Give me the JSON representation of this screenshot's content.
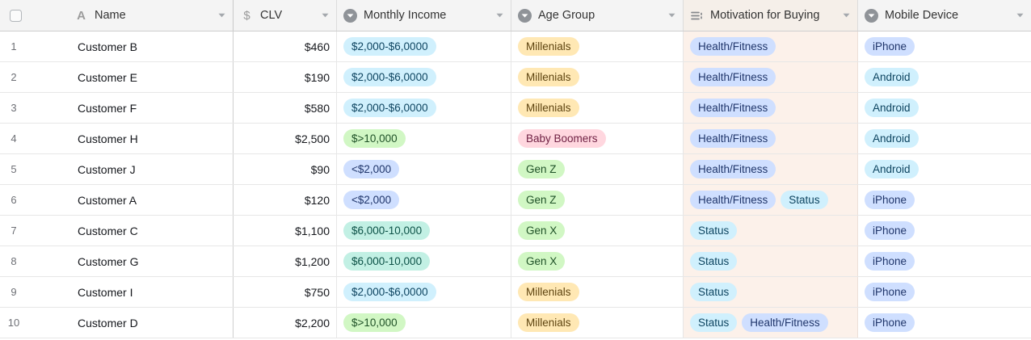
{
  "table": {
    "select_all_checkbox": {
      "checked": false
    },
    "columns": [
      {
        "key": "name",
        "label": "Name",
        "icon": "text-field-icon"
      },
      {
        "key": "clv",
        "label": "CLV",
        "icon": "currency-field-icon"
      },
      {
        "key": "income",
        "label": "Monthly Income",
        "icon": "single-select-field-icon"
      },
      {
        "key": "age",
        "label": "Age Group",
        "icon": "single-select-field-icon"
      },
      {
        "key": "motivation",
        "label": "Motivation for Buying",
        "icon": "multi-select-field-icon"
      },
      {
        "key": "device",
        "label": "Mobile Device",
        "icon": "single-select-field-icon"
      }
    ],
    "option_colors": {
      "cyan": {
        "bg": "#d0f0fd",
        "text": "#0d4460"
      },
      "blue": {
        "bg": "#cfdfff",
        "text": "#20366b"
      },
      "green": {
        "bg": "#d1f7c4",
        "text": "#1f5127"
      },
      "yellow": {
        "bg": "#ffe8b4",
        "text": "#5e4410"
      },
      "pink": {
        "bg": "#ffd7df",
        "text": "#6e1f42"
      },
      "teal": {
        "bg": "#c2f0e4",
        "text": "#0c5247"
      }
    },
    "rows": [
      {
        "num": "1",
        "name": "Customer B",
        "clv": "$460",
        "income": {
          "label": "$2,000-$6,0000",
          "color": "cyan"
        },
        "age": {
          "label": "Millenials",
          "color": "yellow"
        },
        "motivation": [
          {
            "label": "Health/Fitness",
            "color": "blue"
          }
        ],
        "device": {
          "label": "iPhone",
          "color": "blue"
        }
      },
      {
        "num": "2",
        "name": "Customer E",
        "clv": "$190",
        "income": {
          "label": "$2,000-$6,0000",
          "color": "cyan"
        },
        "age": {
          "label": "Millenials",
          "color": "yellow"
        },
        "motivation": [
          {
            "label": "Health/Fitness",
            "color": "blue"
          }
        ],
        "device": {
          "label": "Android",
          "color": "cyan"
        }
      },
      {
        "num": "3",
        "name": "Customer F",
        "clv": "$580",
        "income": {
          "label": "$2,000-$6,0000",
          "color": "cyan"
        },
        "age": {
          "label": "Millenials",
          "color": "yellow"
        },
        "motivation": [
          {
            "label": "Health/Fitness",
            "color": "blue"
          }
        ],
        "device": {
          "label": "Android",
          "color": "cyan"
        }
      },
      {
        "num": "4",
        "name": "Customer H",
        "clv": "$2,500",
        "income": {
          "label": "$>10,000",
          "color": "green"
        },
        "age": {
          "label": "Baby Boomers",
          "color": "pink"
        },
        "motivation": [
          {
            "label": "Health/Fitness",
            "color": "blue"
          }
        ],
        "device": {
          "label": "Android",
          "color": "cyan"
        }
      },
      {
        "num": "5",
        "name": "Customer J",
        "clv": "$90",
        "income": {
          "label": "<$2,000",
          "color": "blue"
        },
        "age": {
          "label": "Gen Z",
          "color": "green"
        },
        "motivation": [
          {
            "label": "Health/Fitness",
            "color": "blue"
          }
        ],
        "device": {
          "label": "Android",
          "color": "cyan"
        }
      },
      {
        "num": "6",
        "name": "Customer A",
        "clv": "$120",
        "income": {
          "label": "<$2,000",
          "color": "blue"
        },
        "age": {
          "label": "Gen Z",
          "color": "green"
        },
        "motivation": [
          {
            "label": "Health/Fitness",
            "color": "blue"
          },
          {
            "label": "Status",
            "color": "cyan"
          }
        ],
        "device": {
          "label": "iPhone",
          "color": "blue"
        }
      },
      {
        "num": "7",
        "name": "Customer C",
        "clv": "$1,100",
        "income": {
          "label": "$6,000-10,000",
          "color": "teal"
        },
        "age": {
          "label": "Gen X",
          "color": "green"
        },
        "motivation": [
          {
            "label": "Status",
            "color": "cyan"
          }
        ],
        "device": {
          "label": "iPhone",
          "color": "blue"
        }
      },
      {
        "num": "8",
        "name": "Customer G",
        "clv": "$1,200",
        "income": {
          "label": "$6,000-10,000",
          "color": "teal"
        },
        "age": {
          "label": "Gen X",
          "color": "green"
        },
        "motivation": [
          {
            "label": "Status",
            "color": "cyan"
          }
        ],
        "device": {
          "label": "iPhone",
          "color": "blue"
        }
      },
      {
        "num": "9",
        "name": "Customer I",
        "clv": "$750",
        "income": {
          "label": "$2,000-$6,0000",
          "color": "cyan"
        },
        "age": {
          "label": "Millenials",
          "color": "yellow"
        },
        "motivation": [
          {
            "label": "Status",
            "color": "cyan"
          }
        ],
        "device": {
          "label": "iPhone",
          "color": "blue"
        }
      },
      {
        "num": "10",
        "name": "Customer D",
        "clv": "$2,200",
        "income": {
          "label": "$>10,000",
          "color": "green"
        },
        "age": {
          "label": "Millenials",
          "color": "yellow"
        },
        "motivation": [
          {
            "label": "Status",
            "color": "cyan"
          },
          {
            "label": "Health/Fitness",
            "color": "blue"
          }
        ],
        "device": {
          "label": "iPhone",
          "color": "blue"
        }
      }
    ]
  }
}
